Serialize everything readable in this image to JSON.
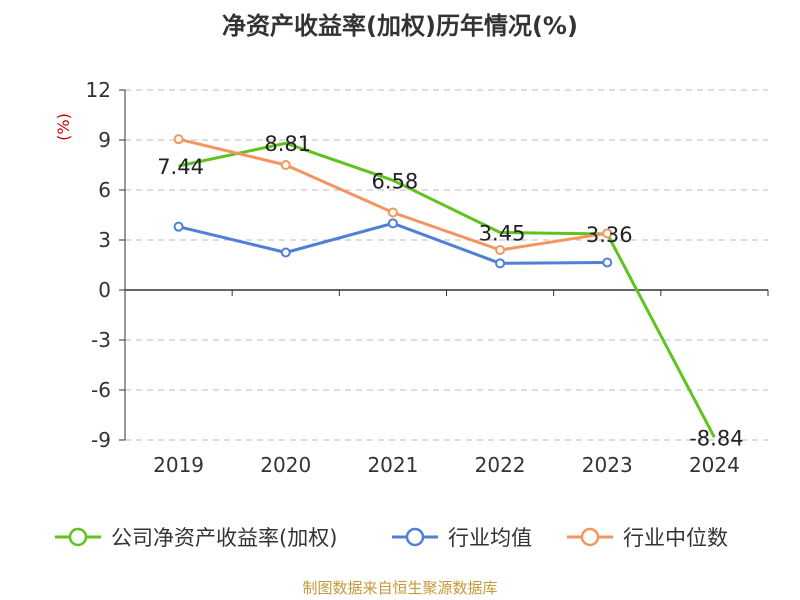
{
  "title": "净资产收益率(加权)历年情况(%)",
  "source": "制图数据来自恒生聚源数据库",
  "chart_data": {
    "type": "line",
    "title": "净资产收益率(加权)历年情况(%)",
    "ylabel": "(%)",
    "xlabel": "",
    "categories": [
      "2019",
      "2020",
      "2021",
      "2022",
      "2023",
      "2024"
    ],
    "ylim": [
      -9,
      12
    ],
    "yticks": [
      12,
      9,
      6,
      3,
      0,
      -3,
      -6,
      -9
    ],
    "ytick_labels": [
      "12",
      "9",
      "6",
      "3",
      "0",
      "-3",
      "-6",
      "-9"
    ],
    "grid": "horizontal dashed",
    "legend_position": "bottom",
    "series": [
      {
        "name": "公司净资产收益率(加权)",
        "color": "#5fc31f",
        "values": [
          7.44,
          8.81,
          6.58,
          3.45,
          3.36,
          -8.84
        ],
        "labels": [
          "7.44",
          "8.81",
          "6.58",
          "3.45",
          "3.36",
          "-8.84"
        ],
        "show_markers": false
      },
      {
        "name": "行业均值",
        "color": "#4f7fd6",
        "values": [
          3.8,
          2.25,
          4.0,
          1.6,
          1.65,
          null
        ],
        "show_markers": true
      },
      {
        "name": "行业中位数",
        "color": "#f49561",
        "values": [
          9.05,
          7.5,
          4.65,
          2.4,
          3.4,
          null
        ],
        "show_markers": true
      }
    ]
  }
}
